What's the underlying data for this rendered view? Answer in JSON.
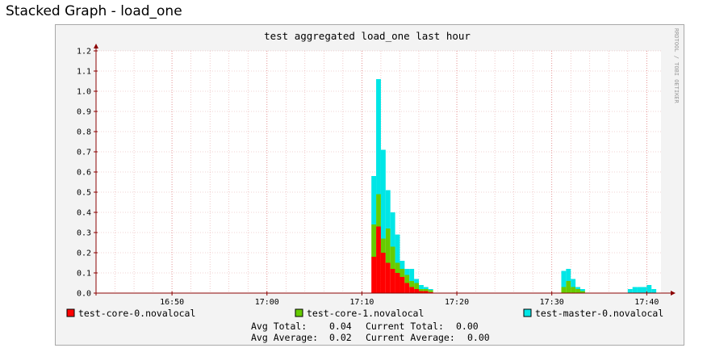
{
  "page": {
    "title": "Stacked Graph - load_one"
  },
  "chart_data": {
    "type": "area",
    "stacked": true,
    "title": "test aggregated load_one last hour",
    "watermark": "RRDTOOL / TOBI OETIKER",
    "xlabel": "",
    "ylabel": "",
    "x_ticks": [
      "16:50",
      "17:00",
      "17:10",
      "17:20",
      "17:30",
      "17:40"
    ],
    "y_ticks": [
      "0.0",
      "0.1",
      "0.2",
      "0.3",
      "0.4",
      "0.5",
      "0.6",
      "0.7",
      "0.8",
      "0.9",
      "1.0",
      "1.1",
      "1.2"
    ],
    "ylim": [
      0,
      1.2
    ],
    "xlim": [
      "16:42",
      "17:41:30"
    ],
    "grid": true,
    "legend_position": "bottom",
    "x": [
      "17:11",
      "17:11:30",
      "17:12",
      "17:12:30",
      "17:13",
      "17:13:30",
      "17:14",
      "17:14:30",
      "17:15",
      "17:15:30",
      "17:16",
      "17:16:30",
      "17:17",
      "17:17:30",
      "17:18",
      "17:31",
      "17:31:30",
      "17:32",
      "17:32:30",
      "17:33",
      "17:33:30",
      "17:38",
      "17:38:30",
      "17:39",
      "17:39:30",
      "17:40",
      "17:40:30"
    ],
    "series": [
      {
        "name": "test-core-0.novalocal",
        "color": "#ff0000",
        "values": [
          0.18,
          0.33,
          0.2,
          0.15,
          0.12,
          0.1,
          0.08,
          0.05,
          0.03,
          0.02,
          0.01,
          0.01,
          0.005,
          0.0,
          0.0,
          0.0,
          0.0,
          0.0,
          0.0,
          0.0,
          0.0,
          0.0,
          0.0,
          0.0,
          0.0,
          0.0,
          0.0
        ]
      },
      {
        "name": "test-core-1.novalocal",
        "color": "#66cc00",
        "values": [
          0.16,
          0.16,
          0.07,
          0.17,
          0.11,
          0.05,
          0.04,
          0.04,
          0.03,
          0.03,
          0.01,
          0.01,
          0.01,
          0.0,
          0.0,
          0.03,
          0.06,
          0.03,
          0.02,
          0.01,
          0.0,
          0.0,
          0.0,
          0.0,
          0.0,
          0.0,
          0.0
        ]
      },
      {
        "name": "test-master-0.novalocal",
        "color": "#00e6e6",
        "values": [
          0.24,
          0.57,
          0.44,
          0.19,
          0.17,
          0.14,
          0.04,
          0.03,
          0.06,
          0.02,
          0.02,
          0.01,
          0.005,
          0.0,
          0.0,
          0.08,
          0.06,
          0.04,
          0.01,
          0.01,
          0.0,
          0.02,
          0.03,
          0.03,
          0.03,
          0.04,
          0.02
        ]
      }
    ]
  },
  "summary": {
    "avg_total_label": "Avg Total:",
    "avg_total_value": "0.04",
    "current_total_label": "Current Total:",
    "current_total_value": "0.00",
    "avg_average_label": "Avg Average:",
    "avg_average_value": "0.02",
    "current_average_label": "Current Average:",
    "current_average_value": "0.00"
  },
  "colors": {
    "grid_minor": "#e6a7a7",
    "axis": "#8b0000",
    "frame_bg": "#f3f3f3",
    "plot_bg": "#ffffff"
  }
}
